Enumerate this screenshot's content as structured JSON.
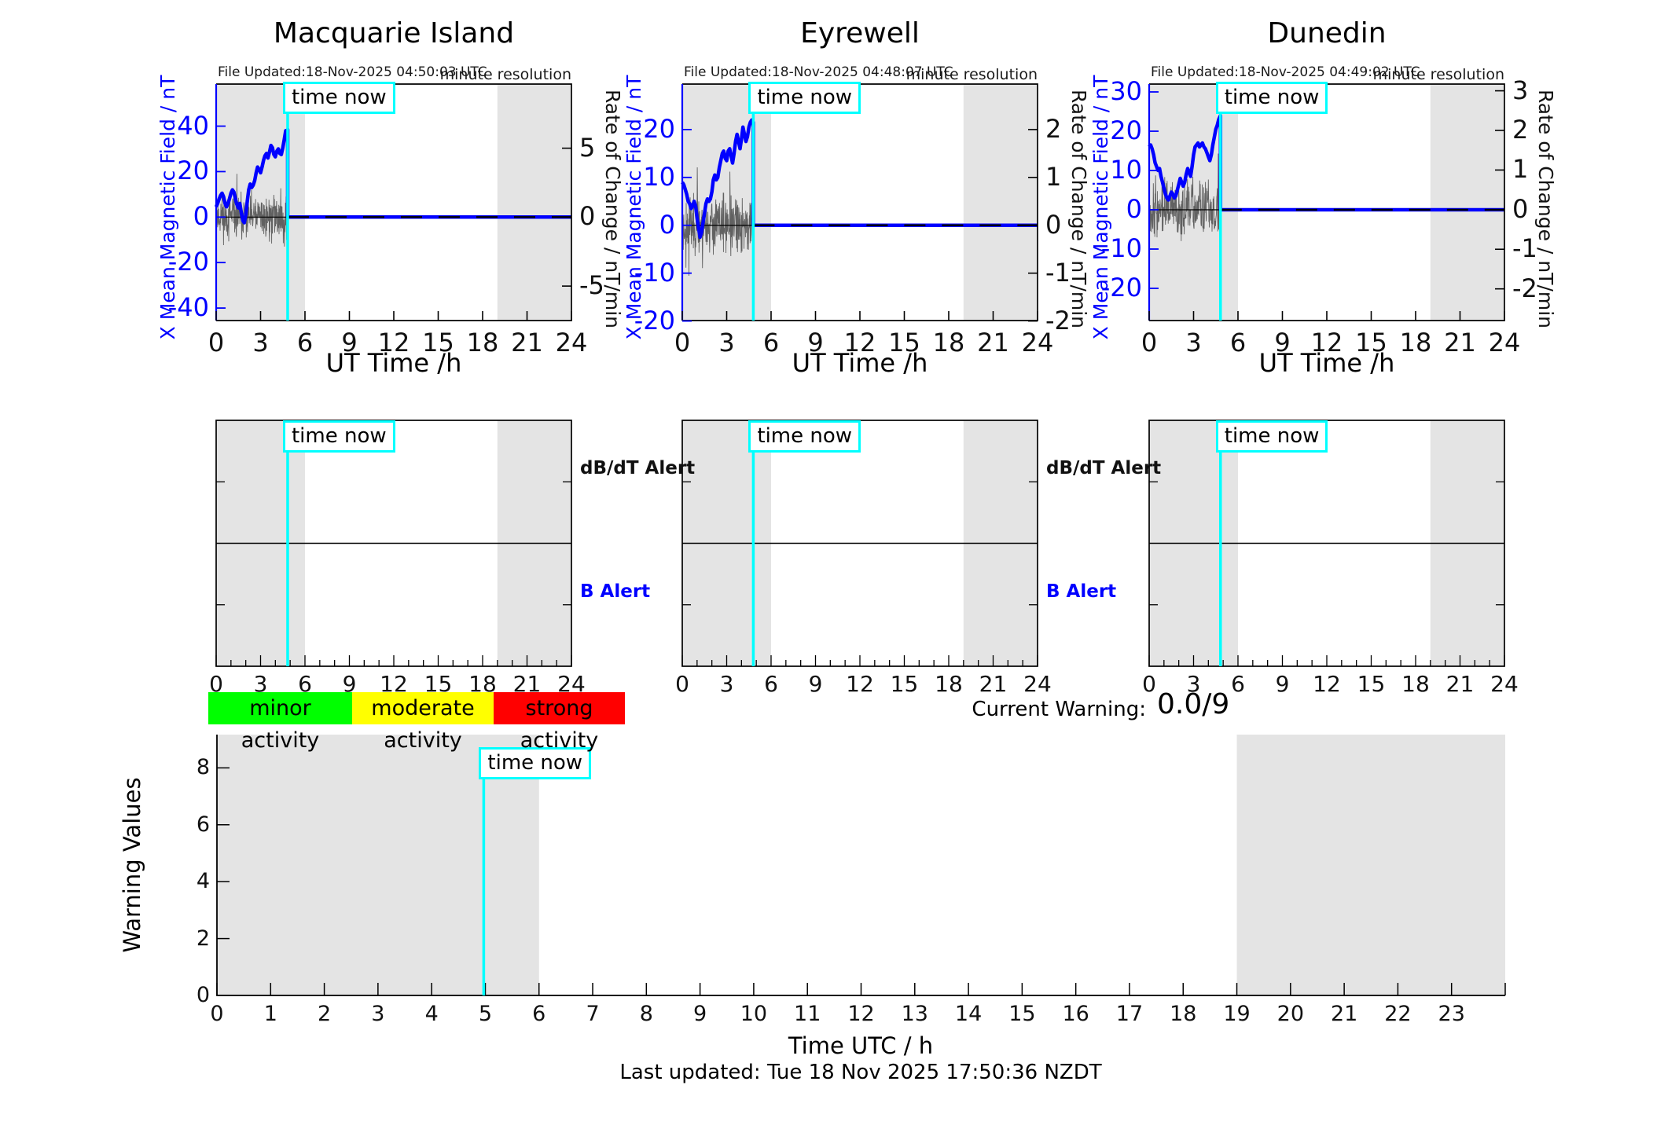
{
  "time_now_label": "time now",
  "alert_labels": {
    "dbdt": "dB/dT Alert",
    "b": "B Alert"
  },
  "legend": [
    {
      "label": "minor activity",
      "color": "#00ff00"
    },
    {
      "label": "moderate activity",
      "color": "#ffff00"
    },
    {
      "label": "strong activity",
      "color": "#ff0000"
    }
  ],
  "current_warning": {
    "label": "Current Warning:",
    "value": "0.0/9"
  },
  "footer": {
    "last_updated": "Last updated: Tue 18 Nov 2025 17:50:36 NZDT"
  },
  "colors": {
    "field_line": "#0000ff",
    "axis_blue": "#0000ff",
    "time_now": "#00ffff",
    "shading": "#e4e4e4",
    "noise": "#4a4a4a",
    "minor_activity": "#00ff00",
    "moderate_activity": "#ffff00",
    "strong_activity": "#ff0000"
  },
  "chart_data": [
    {
      "type": "line",
      "role": "station",
      "title": "Macquarie Island",
      "file_updated": "File Updated:18-Nov-2025 04:50:03 UTC",
      "resolution_note": "minute resolution",
      "xlabel": "UT Time /h",
      "ylabel_left": "X Mean Magnetic Field / nT",
      "ylabel_right": "Rate of Change / nT/min",
      "xlim": [
        0,
        24
      ],
      "xticks": [
        0,
        3,
        6,
        9,
        12,
        15,
        18,
        21,
        24
      ],
      "ylim_left": [
        -45.5,
        58.5
      ],
      "yticks_left": [
        -40,
        -20,
        0,
        20,
        40
      ],
      "ylim_right": [
        -7.5,
        9.65
      ],
      "yticks_right": [
        -5,
        0,
        5
      ],
      "time_now_h": 4.83,
      "shaded_bands_h": [
        [
          0,
          6
        ],
        [
          19,
          24
        ]
      ],
      "flat_after_value": 0,
      "noise": {
        "seed": 11,
        "base_amplitude": 9,
        "spike_chance": 0.05,
        "spike_gain": 2.6
      },
      "field_points": [
        [
          0,
          4.5
        ],
        [
          0.1,
          6
        ],
        [
          0.2,
          8
        ],
        [
          0.3,
          9.5
        ],
        [
          0.4,
          10.5
        ],
        [
          0.5,
          9
        ],
        [
          0.6,
          6
        ],
        [
          0.7,
          4.5
        ],
        [
          0.8,
          6
        ],
        [
          0.9,
          8
        ],
        [
          1,
          10.5
        ],
        [
          1.1,
          12
        ],
        [
          1.2,
          11
        ],
        [
          1.3,
          8
        ],
        [
          1.4,
          5.5
        ],
        [
          1.5,
          4
        ],
        [
          1.6,
          6
        ],
        [
          1.7,
          2
        ],
        [
          1.8,
          -1.5
        ],
        [
          1.9,
          -2.5
        ],
        [
          2,
          1
        ],
        [
          2.1,
          7
        ],
        [
          2.2,
          12
        ],
        [
          2.3,
          14.5
        ],
        [
          2.4,
          13
        ],
        [
          2.5,
          14
        ],
        [
          2.6,
          16
        ],
        [
          2.7,
          19.5
        ],
        [
          2.8,
          22
        ],
        [
          2.9,
          21
        ],
        [
          3,
          19.5
        ],
        [
          3.1,
          22
        ],
        [
          3.2,
          25
        ],
        [
          3.3,
          27
        ],
        [
          3.4,
          28
        ],
        [
          3.5,
          26
        ],
        [
          3.6,
          28.5
        ],
        [
          3.7,
          31.5
        ],
        [
          3.8,
          30.5
        ],
        [
          3.9,
          27.5
        ],
        [
          4,
          26.5
        ],
        [
          4.1,
          29
        ],
        [
          4.2,
          30
        ],
        [
          4.3,
          28
        ],
        [
          4.4,
          27.5
        ],
        [
          4.5,
          30.5
        ],
        [
          4.6,
          34
        ],
        [
          4.7,
          38
        ],
        [
          4.75,
          36.5
        ],
        [
          4.83,
          38.5
        ]
      ]
    },
    {
      "type": "line",
      "role": "station",
      "title": "Eyrewell",
      "file_updated": "File Updated:18-Nov-2025 04:48:07 UTC",
      "resolution_note": "minute resolution",
      "xlabel": "UT Time /h",
      "ylabel_left": "X Mean Magnetic Field / nT",
      "ylabel_right": "Rate of Change / nT/min",
      "xlim": [
        0,
        24
      ],
      "xticks": [
        0,
        3,
        6,
        9,
        12,
        15,
        18,
        21,
        24
      ],
      "ylim_left": [
        -19.9,
        29.5
      ],
      "yticks_left": [
        -20,
        -10,
        0,
        10,
        20
      ],
      "ylim_right": [
        -1.99,
        2.95
      ],
      "yticks_right": [
        -2,
        -1,
        0,
        1,
        2
      ],
      "time_now_h": 4.8,
      "shaded_bands_h": [
        [
          0,
          6
        ],
        [
          19,
          24
        ]
      ],
      "flat_after_value": 0,
      "noise": {
        "seed": 23,
        "base_amplitude": 5.5,
        "spike_chance": 0.05,
        "spike_gain": 2.6
      },
      "field_points": [
        [
          0,
          9
        ],
        [
          0.1,
          8.5
        ],
        [
          0.2,
          7.5
        ],
        [
          0.3,
          6.5
        ],
        [
          0.4,
          5
        ],
        [
          0.5,
          4.5
        ],
        [
          0.6,
          3.5
        ],
        [
          0.7,
          4
        ],
        [
          0.8,
          5
        ],
        [
          0.9,
          4
        ],
        [
          1,
          1.5
        ],
        [
          1.1,
          -0.5
        ],
        [
          1.2,
          -2.5
        ],
        [
          1.3,
          -1.5
        ],
        [
          1.4,
          0.5
        ],
        [
          1.5,
          2.5
        ],
        [
          1.6,
          4.5
        ],
        [
          1.7,
          5.5
        ],
        [
          1.8,
          5
        ],
        [
          1.9,
          5.5
        ],
        [
          2,
          7
        ],
        [
          2.1,
          9.5
        ],
        [
          2.2,
          10.5
        ],
        [
          2.3,
          9.5
        ],
        [
          2.4,
          10
        ],
        [
          2.5,
          12
        ],
        [
          2.6,
          13.5
        ],
        [
          2.7,
          15
        ],
        [
          2.8,
          15.5
        ],
        [
          2.9,
          14
        ],
        [
          3,
          13.5
        ],
        [
          3.1,
          15.5
        ],
        [
          3.2,
          16
        ],
        [
          3.3,
          14.5
        ],
        [
          3.4,
          13
        ],
        [
          3.5,
          15
        ],
        [
          3.6,
          17.5
        ],
        [
          3.7,
          19
        ],
        [
          3.8,
          17.5
        ],
        [
          3.9,
          16
        ],
        [
          4,
          18
        ],
        [
          4.1,
          20.5
        ],
        [
          4.2,
          19
        ],
        [
          4.3,
          17.5
        ],
        [
          4.4,
          18.5
        ],
        [
          4.5,
          20.5
        ],
        [
          4.6,
          21.5
        ],
        [
          4.7,
          22
        ],
        [
          4.8,
          21.5
        ]
      ]
    },
    {
      "type": "line",
      "role": "station",
      "title": "Dunedin",
      "file_updated": "File Updated:18-Nov-2025 04:49:02 UTC",
      "resolution_note": "minute resolution",
      "xlabel": "UT Time /h",
      "ylabel_left": "X Mean Magnetic Field / nT",
      "ylabel_right": "Rate of Change / nT/min",
      "xlim": [
        0,
        24
      ],
      "xticks": [
        0,
        3,
        6,
        9,
        12,
        15,
        18,
        21,
        24
      ],
      "ylim_left": [
        -28.2,
        32
      ],
      "yticks_left": [
        -20,
        -10,
        0,
        10,
        20,
        30
      ],
      "ylim_right": [
        -2.8,
        3.17
      ],
      "yticks_right": [
        -2,
        -1,
        0,
        1,
        2,
        3
      ],
      "time_now_h": 4.82,
      "shaded_bands_h": [
        [
          0,
          6
        ],
        [
          19,
          24
        ]
      ],
      "flat_after_value": 0,
      "noise": {
        "seed": 37,
        "base_amplitude": 6.5,
        "spike_chance": 0.05,
        "spike_gain": 2.6
      },
      "field_points": [
        [
          0,
          16
        ],
        [
          0.1,
          16.5
        ],
        [
          0.2,
          15.5
        ],
        [
          0.3,
          14
        ],
        [
          0.4,
          12
        ],
        [
          0.5,
          11
        ],
        [
          0.6,
          10
        ],
        [
          0.7,
          10.5
        ],
        [
          0.8,
          8.5
        ],
        [
          0.9,
          7
        ],
        [
          1,
          5.5
        ],
        [
          1.1,
          4
        ],
        [
          1.2,
          3
        ],
        [
          1.3,
          2.5
        ],
        [
          1.4,
          3.5
        ],
        [
          1.5,
          4.5
        ],
        [
          1.6,
          4
        ],
        [
          1.7,
          3
        ],
        [
          1.8,
          3.5
        ],
        [
          1.9,
          5
        ],
        [
          2,
          6.5
        ],
        [
          2.1,
          8
        ],
        [
          2.2,
          7
        ],
        [
          2.3,
          6
        ],
        [
          2.4,
          7
        ],
        [
          2.5,
          9
        ],
        [
          2.6,
          10.5
        ],
        [
          2.7,
          9.5
        ],
        [
          2.8,
          8.5
        ],
        [
          2.9,
          11
        ],
        [
          3,
          14
        ],
        [
          3.1,
          16
        ],
        [
          3.2,
          16.5
        ],
        [
          3.3,
          17
        ],
        [
          3.4,
          16
        ],
        [
          3.5,
          16.5
        ],
        [
          3.6,
          17
        ],
        [
          3.7,
          16
        ],
        [
          3.8,
          15.5
        ],
        [
          3.9,
          14.5
        ],
        [
          4,
          13.5
        ],
        [
          4.1,
          12.5
        ],
        [
          4.2,
          14
        ],
        [
          4.3,
          16.5
        ],
        [
          4.4,
          18.5
        ],
        [
          4.5,
          20.5
        ],
        [
          4.6,
          21.5
        ],
        [
          4.7,
          23
        ],
        [
          4.82,
          24
        ]
      ]
    },
    {
      "type": "timeline",
      "role": "alert",
      "xlim": [
        0,
        24
      ],
      "xticks": [
        0,
        3,
        6,
        9,
        12,
        15,
        18,
        21,
        24
      ],
      "minor_step_h": 1,
      "time_now_h": 4.83,
      "shaded_bands_h": [
        [
          0,
          6
        ],
        [
          19,
          24
        ]
      ],
      "show_alert_labels": true
    },
    {
      "type": "timeline",
      "role": "alert",
      "xlim": [
        0,
        24
      ],
      "xticks": [
        0,
        3,
        6,
        9,
        12,
        15,
        18,
        21,
        24
      ],
      "minor_step_h": 1,
      "time_now_h": 4.8,
      "shaded_bands_h": [
        [
          0,
          6
        ],
        [
          19,
          24
        ]
      ],
      "show_alert_labels": true
    },
    {
      "type": "timeline",
      "role": "alert",
      "xlim": [
        0,
        24
      ],
      "xticks": [
        0,
        3,
        6,
        9,
        12,
        15,
        18,
        21,
        24
      ],
      "minor_step_h": 1,
      "time_now_h": 4.82,
      "shaded_bands_h": [
        [
          0,
          6
        ],
        [
          19,
          24
        ]
      ],
      "show_alert_labels": false
    },
    {
      "type": "line",
      "role": "warning",
      "ylabel": "Warning Values",
      "xlabel": "Time UTC / h",
      "xlim": [
        0,
        24
      ],
      "xticks": [
        0,
        1,
        2,
        3,
        4,
        5,
        6,
        7,
        8,
        9,
        10,
        11,
        12,
        13,
        14,
        15,
        16,
        17,
        18,
        19,
        20,
        21,
        22,
        23
      ],
      "ylim": [
        0,
        9.17
      ],
      "yticks": [
        0,
        2,
        4,
        6,
        8
      ],
      "time_now_h": 4.97,
      "shaded_bands_h": [
        [
          0,
          6
        ],
        [
          19,
          24
        ]
      ],
      "series_points": [
        [
          0,
          0
        ],
        [
          24,
          0
        ]
      ]
    }
  ]
}
